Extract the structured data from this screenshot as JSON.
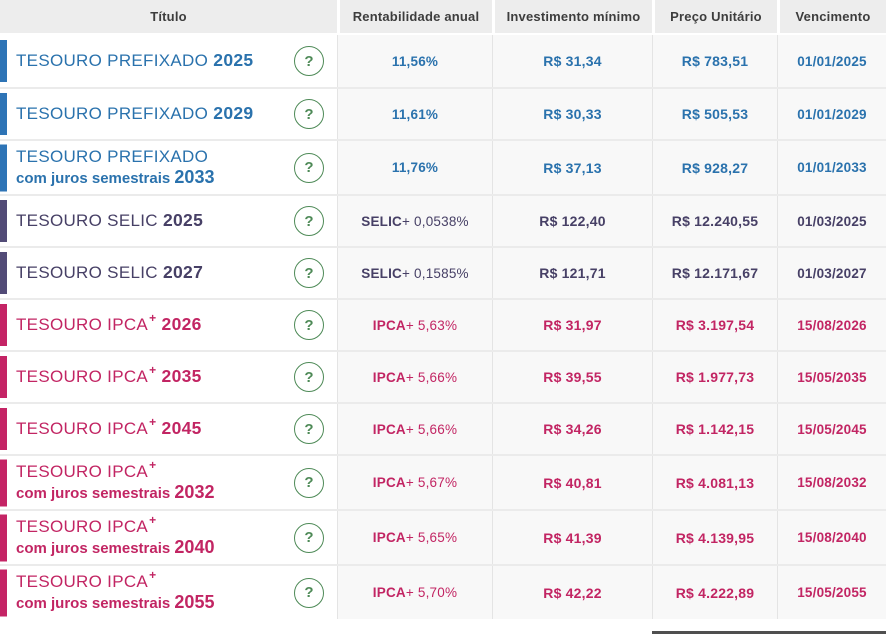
{
  "table": {
    "columns": [
      "Título",
      "Rentabilidade anual",
      "Investimento mínimo",
      "Preço Unitário",
      "Vencimento"
    ],
    "help_icon": "?",
    "rows": [
      {
        "theme": "blue",
        "name": "TESOURO PREFIXADO",
        "sup": "",
        "sub": "",
        "year": "2025",
        "rate_bold": "11,56%",
        "rate_rest": "",
        "min": "R$ 31,34",
        "price": "R$ 783,51",
        "maturity": "01/01/2025"
      },
      {
        "theme": "blue",
        "name": "TESOURO PREFIXADO",
        "sup": "",
        "sub": "",
        "year": "2029",
        "rate_bold": "11,61%",
        "rate_rest": "",
        "min": "R$ 30,33",
        "price": "R$ 505,53",
        "maturity": "01/01/2029"
      },
      {
        "theme": "blue",
        "name": "TESOURO PREFIXADO",
        "sup": "",
        "sub": "com juros semestrais",
        "year": "2033",
        "rate_bold": "11,76%",
        "rate_rest": "",
        "min": "R$ 37,13",
        "price": "R$ 928,27",
        "maturity": "01/01/2033"
      },
      {
        "theme": "purple",
        "name": "TESOURO SELIC",
        "sup": "",
        "sub": "",
        "year": "2025",
        "rate_bold": "SELIC",
        "rate_rest": " + 0,0538%",
        "min": "R$ 122,40",
        "price": "R$ 12.240,55",
        "maturity": "01/03/2025"
      },
      {
        "theme": "purple",
        "name": "TESOURO SELIC",
        "sup": "",
        "sub": "",
        "year": "2027",
        "rate_bold": "SELIC",
        "rate_rest": " + 0,1585%",
        "min": "R$ 121,71",
        "price": "R$ 12.171,67",
        "maturity": "01/03/2027"
      },
      {
        "theme": "pink",
        "name": "TESOURO IPCA",
        "sup": "+",
        "sub": "",
        "year": "2026",
        "rate_bold": "IPCA",
        "rate_rest": " + 5,63%",
        "min": "R$ 31,97",
        "price": "R$ 3.197,54",
        "maturity": "15/08/2026"
      },
      {
        "theme": "pink",
        "name": "TESOURO IPCA",
        "sup": "+",
        "sub": "",
        "year": "2035",
        "rate_bold": "IPCA",
        "rate_rest": " + 5,66%",
        "min": "R$ 39,55",
        "price": "R$ 1.977,73",
        "maturity": "15/05/2035"
      },
      {
        "theme": "pink",
        "name": "TESOURO IPCA",
        "sup": "+",
        "sub": "",
        "year": "2045",
        "rate_bold": "IPCA",
        "rate_rest": " + 5,66%",
        "min": "R$ 34,26",
        "price": "R$ 1.142,15",
        "maturity": "15/05/2045"
      },
      {
        "theme": "pink",
        "name": "TESOURO IPCA",
        "sup": "+",
        "sub": "com juros semestrais",
        "year": "2032",
        "rate_bold": "IPCA",
        "rate_rest": " + 5,67%",
        "min": "R$ 40,81",
        "price": "R$ 4.081,13",
        "maturity": "15/08/2032"
      },
      {
        "theme": "pink",
        "name": "TESOURO IPCA",
        "sup": "+",
        "sub": "com juros semestrais",
        "year": "2040",
        "rate_bold": "IPCA",
        "rate_rest": " + 5,65%",
        "min": "R$ 41,39",
        "price": "R$ 4.139,95",
        "maturity": "15/08/2040"
      },
      {
        "theme": "pink",
        "name": "TESOURO IPCA",
        "sup": "+",
        "sub": "com juros semestrais",
        "year": "2055",
        "rate_bold": "IPCA",
        "rate_rest": " + 5,70%",
        "min": "R$ 42,22",
        "price": "R$ 4.222,89",
        "maturity": "15/05/2055"
      }
    ]
  },
  "colors": {
    "blue_bar": "#2e74b6",
    "blue_text": "#2a72ad",
    "purple_bar": "#524b77",
    "purple_text": "#474066",
    "pink_bar": "#c42465",
    "pink_text": "#c22563",
    "help_green": "#4e8a57",
    "header_bg": "#ededed",
    "header_text": "#3d3d3d"
  }
}
